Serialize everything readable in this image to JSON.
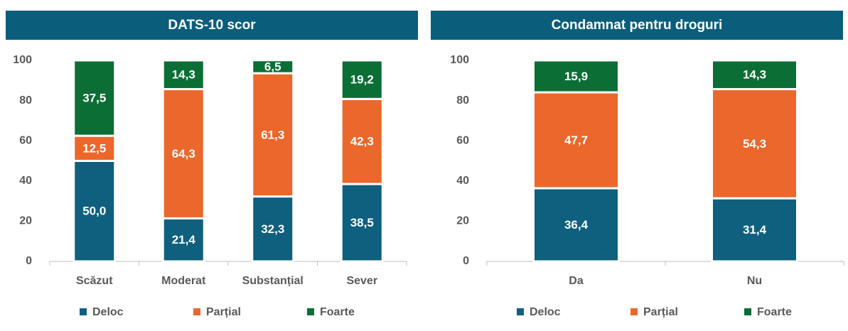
{
  "chart_data": [
    {
      "type": "bar",
      "stacked": true,
      "title": "DATS-10 scor",
      "categories": [
        "Scăzut",
        "Moderat",
        "Substanțial",
        "Sever"
      ],
      "series": [
        {
          "name": "Deloc",
          "color": "#0f5f7f",
          "values": [
            50.0,
            21.4,
            32.3,
            38.5
          ],
          "value_labels": [
            "50,0",
            "21,4",
            "32,3",
            "38,5"
          ]
        },
        {
          "name": "Parțial",
          "color": "#ec672b",
          "values": [
            12.5,
            64.3,
            61.3,
            42.3
          ],
          "value_labels": [
            "12,5",
            "64,3",
            "61,3",
            "42,3"
          ]
        },
        {
          "name": "Foarte",
          "color": "#0b6e35",
          "values": [
            37.5,
            14.3,
            6.5,
            19.2
          ],
          "value_labels": [
            "37,5",
            "14,3",
            "6,5",
            "19,2"
          ]
        }
      ],
      "ylim": [
        0,
        100
      ],
      "yticks": [
        0,
        20,
        40,
        60,
        80,
        100
      ],
      "legend": "bottom"
    },
    {
      "type": "bar",
      "stacked": true,
      "title": "Condamnat pentru droguri",
      "categories": [
        "Da",
        "Nu"
      ],
      "series": [
        {
          "name": "Deloc",
          "color": "#0f5f7f",
          "values": [
            36.4,
            31.4
          ],
          "value_labels": [
            "36,4",
            "31,4"
          ]
        },
        {
          "name": "Parțial",
          "color": "#ec672b",
          "values": [
            47.7,
            54.3
          ],
          "value_labels": [
            "47,7",
            "54,3"
          ]
        },
        {
          "name": "Foarte",
          "color": "#0b6e35",
          "values": [
            15.9,
            14.3
          ],
          "value_labels": [
            "15,9",
            "14,3"
          ]
        }
      ],
      "ylim": [
        0,
        100
      ],
      "yticks": [
        0,
        20,
        40,
        60,
        80,
        100
      ],
      "legend": "bottom"
    }
  ]
}
